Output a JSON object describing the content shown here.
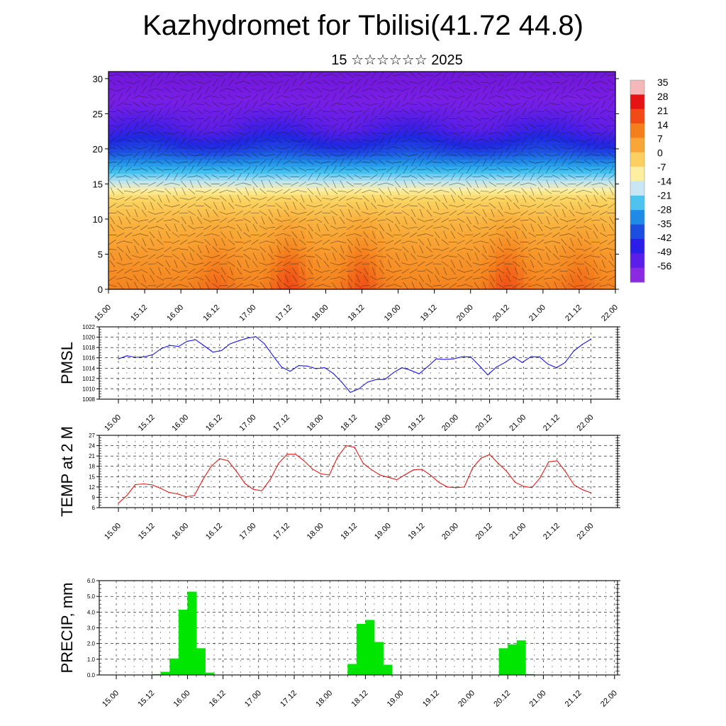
{
  "title": "Kazhydromet for Tbilisi(41.72 44.8)",
  "subtitle": "15 ☆☆☆☆☆☆ 2025",
  "chart_data": [
    {
      "type": "heatmap",
      "name": "temperature-wind-cross-section",
      "yticks": [
        0,
        5,
        10,
        15,
        20,
        25,
        30
      ],
      "ylim": [
        0,
        31
      ],
      "xticks": [
        "15.00",
        "15.12",
        "16.00",
        "16.12",
        "17.00",
        "17.12",
        "18.00",
        "18.12",
        "19.00",
        "19.12",
        "20.00",
        "20.12",
        "21.00",
        "21.12",
        "22.00"
      ],
      "colorbar": {
        "labels": [
          "35",
          "28",
          "21",
          "14",
          "7",
          "0",
          "-7",
          "-14",
          "-21",
          "-28",
          "-35",
          "-42",
          "-49",
          "-56"
        ],
        "colors": [
          "#f4b8b8",
          "#e51414",
          "#f24a14",
          "#f57f1a",
          "#f9a637",
          "#fbd061",
          "#fdeea0",
          "#c8e6f4",
          "#4fc3f0",
          "#1e8ce6",
          "#1e4ee0",
          "#2a1ee8",
          "#5a1ee8",
          "#8a2be2"
        ]
      },
      "temperature_profile": [
        {
          "level": 0,
          "value": 14
        },
        {
          "level": 5,
          "value": 10
        },
        {
          "level": 10,
          "value": 5
        },
        {
          "level": 13,
          "value": 0
        },
        {
          "level": 15,
          "value": -12
        },
        {
          "level": 17,
          "value": -22
        },
        {
          "level": 20,
          "value": -38
        },
        {
          "level": 23,
          "value": -50
        },
        {
          "level": 26,
          "value": -55
        },
        {
          "level": 31,
          "value": -60
        }
      ],
      "warm_cores": [
        {
          "x": "16.12",
          "value": 18
        },
        {
          "x": "17.12",
          "value": 22
        },
        {
          "x": "18.12",
          "value": 21
        },
        {
          "x": "20.12",
          "value": 21
        },
        {
          "x": "21.12",
          "value": 18
        }
      ]
    },
    {
      "type": "line",
      "name": "pmsl",
      "ylabel": "PMSL",
      "ylim": [
        1008,
        1022
      ],
      "yticks": [
        1008,
        1010,
        1012,
        1014,
        1016,
        1018,
        1020,
        1022
      ],
      "xticks": [
        "15.00",
        "15.12",
        "16.00",
        "16.12",
        "17.00",
        "17.12",
        "18.00",
        "18.12",
        "19.00",
        "19.12",
        "20.00",
        "20.12",
        "21.00",
        "21.12",
        "22.00"
      ],
      "color": "#1a1ae6",
      "values": [
        1015.8,
        1016.4,
        1016.1,
        1016.2,
        1016.6,
        1017.8,
        1018.4,
        1018.2,
        1019.2,
        1019.5,
        1018.3,
        1017.1,
        1017.4,
        1018.7,
        1019.3,
        1019.8,
        1020.1,
        1018.7,
        1016.4,
        1014.2,
        1013.4,
        1014.5,
        1014.4,
        1013.9,
        1014.1,
        1013.0,
        1011.3,
        1009.3,
        1010.0,
        1011.3,
        1011.8,
        1011.8,
        1013.1,
        1014.1,
        1013.6,
        1012.9,
        1014.3,
        1015.8,
        1015.7,
        1015.8,
        1016.2,
        1016.2,
        1014.5,
        1012.7,
        1014.2,
        1015.1,
        1016.2,
        1015.1,
        1016.2,
        1016.2,
        1014.8,
        1014.1,
        1015.1,
        1017.3,
        1018.6,
        1019.6
      ]
    },
    {
      "type": "line",
      "name": "temp-2m",
      "ylabel": "TEMP at 2 M",
      "ylim": [
        6,
        27
      ],
      "yticks": [
        6,
        9,
        12,
        15,
        18,
        21,
        24,
        27
      ],
      "xticks": [
        "15.00",
        "15.12",
        "16.00",
        "16.12",
        "17.00",
        "17.12",
        "18.00",
        "18.12",
        "19.00",
        "19.12",
        "20.00",
        "20.12",
        "21.00",
        "21.12",
        "22.00"
      ],
      "color": "#e01c1c",
      "values": [
        7.3,
        9.5,
        12.7,
        12.9,
        12.6,
        11.6,
        10.4,
        10.0,
        9.2,
        9.5,
        14.1,
        18.0,
        20.2,
        19.6,
        16.5,
        13.0,
        11.3,
        10.9,
        14.2,
        18.9,
        21.5,
        21.5,
        19.6,
        17.2,
        15.8,
        15.5,
        20.8,
        24.0,
        23.5,
        18.9,
        17.0,
        15.5,
        14.8,
        14.1,
        15.6,
        17.0,
        17.1,
        15.4,
        13.3,
        12.0,
        11.8,
        12.0,
        17.6,
        20.4,
        21.4,
        18.9,
        16.6,
        13.4,
        12.2,
        11.8,
        14.7,
        19.3,
        19.6,
        16.4,
        12.6,
        11.2,
        10.3
      ]
    },
    {
      "type": "bar",
      "name": "precip",
      "ylabel": "PRECIP, mm",
      "ylim": [
        0,
        6
      ],
      "yticks": [
        "0.0",
        "1.0",
        "2.0",
        "3.0",
        "4.0",
        "5.0",
        "6.0"
      ],
      "xticks": [
        "15.00",
        "15.12",
        "16.00",
        "16.12",
        "17.00",
        "17.12",
        "18.00",
        "18.12",
        "19.00",
        "19.12",
        "20.00",
        "20.12",
        "21.00",
        "21.12",
        "22.00"
      ],
      "color": "#00e600",
      "values": [
        0,
        0,
        0,
        0,
        0.05,
        0.2,
        1.05,
        4.15,
        5.3,
        1.7,
        0.15,
        0,
        0,
        0,
        0,
        0,
        0,
        0,
        0,
        0,
        0,
        0,
        0,
        0,
        0,
        0,
        0.7,
        3.25,
        3.5,
        2.1,
        0.65,
        0,
        0,
        0,
        0,
        0,
        0,
        0,
        0,
        0,
        0,
        0,
        0,
        1.7,
        1.95,
        2.2,
        0.05,
        0.02,
        0,
        0,
        0,
        0,
        0,
        0,
        0,
        0
      ]
    }
  ]
}
